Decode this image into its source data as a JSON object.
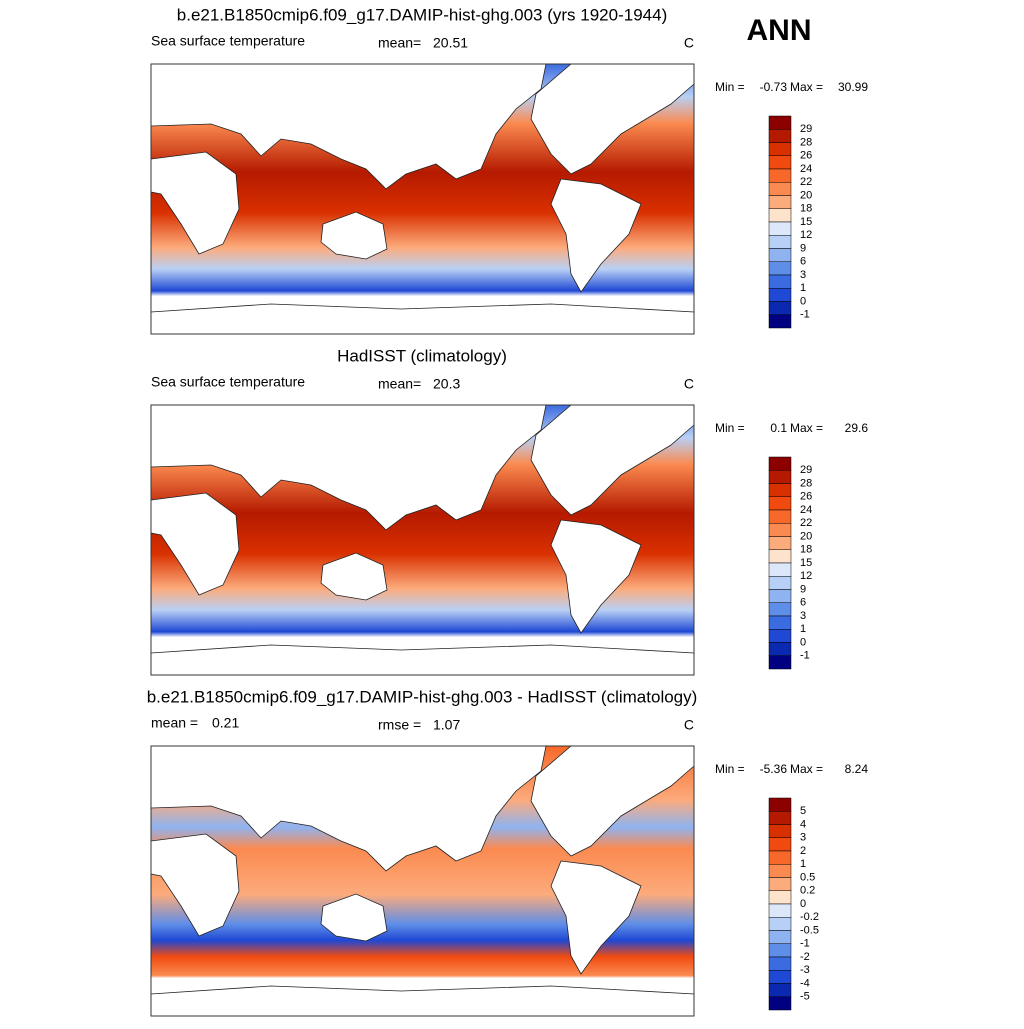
{
  "corner_label": "ANN",
  "panels": [
    {
      "title": "b.e21.B1850cmip6.f09_g17.DAMIP-hist-ghg.003 (yrs 1920-1944)",
      "left_label": "Sea surface temperature",
      "mean_label": "mean=",
      "mean": 20.51,
      "units": "C",
      "min_label": "Min =",
      "min": -0.73,
      "max_label": "Max =",
      "max": 30.99,
      "colorbar": {
        "levels": [
          29,
          28,
          26,
          24,
          22,
          20,
          18,
          15,
          12,
          9,
          6,
          3,
          1,
          0,
          -1
        ],
        "colors": [
          "#8c0000",
          "#b51a00",
          "#d93000",
          "#f04a10",
          "#f7682a",
          "#fb8a50",
          "#fcab7c",
          "#fde2cc",
          "#dce8fa",
          "#b8d0f5",
          "#8fb3f0",
          "#5f8ee8",
          "#3b6be0",
          "#1f48d4",
          "#0a28b0",
          "#000080"
        ]
      }
    },
    {
      "title": "HadISST (climatology)",
      "left_label": "Sea surface temperature",
      "mean_label": "mean=",
      "mean": 20.3,
      "units": "C",
      "min_label": "Min =",
      "min": 0.1,
      "max_label": "Max =",
      "max": 29.6,
      "colorbar": {
        "levels": [
          29,
          28,
          26,
          24,
          22,
          20,
          18,
          15,
          12,
          9,
          6,
          3,
          1,
          0,
          -1
        ],
        "colors": [
          "#8c0000",
          "#b51a00",
          "#d93000",
          "#f04a10",
          "#f7682a",
          "#fb8a50",
          "#fcab7c",
          "#fde2cc",
          "#dce8fa",
          "#b8d0f5",
          "#8fb3f0",
          "#5f8ee8",
          "#3b6be0",
          "#1f48d4",
          "#0a28b0",
          "#000080"
        ]
      }
    },
    {
      "title": "b.e21.B1850cmip6.f09_g17.DAMIP-hist-ghg.003 - HadISST (climatology)",
      "left_label": "mean =",
      "left_value": 0.21,
      "mean_label": "rmse =",
      "mean": 1.07,
      "units": "C",
      "min_label": "Min =",
      "min": -5.36,
      "max_label": "Max =",
      "max": 8.24,
      "colorbar": {
        "levels": [
          5,
          4,
          3,
          2,
          1,
          0.5,
          0.2,
          0,
          -0.2,
          -0.5,
          -1,
          -2,
          -3,
          -4,
          -5
        ],
        "colors": [
          "#8c0000",
          "#b51a00",
          "#d93000",
          "#f04a10",
          "#f7682a",
          "#fb8a50",
          "#fcab7c",
          "#fde2cc",
          "#dce8fa",
          "#b8d0f5",
          "#8fb3f0",
          "#5f8ee8",
          "#3b6be0",
          "#1f48d4",
          "#0a28b0",
          "#000080"
        ]
      }
    }
  ]
}
